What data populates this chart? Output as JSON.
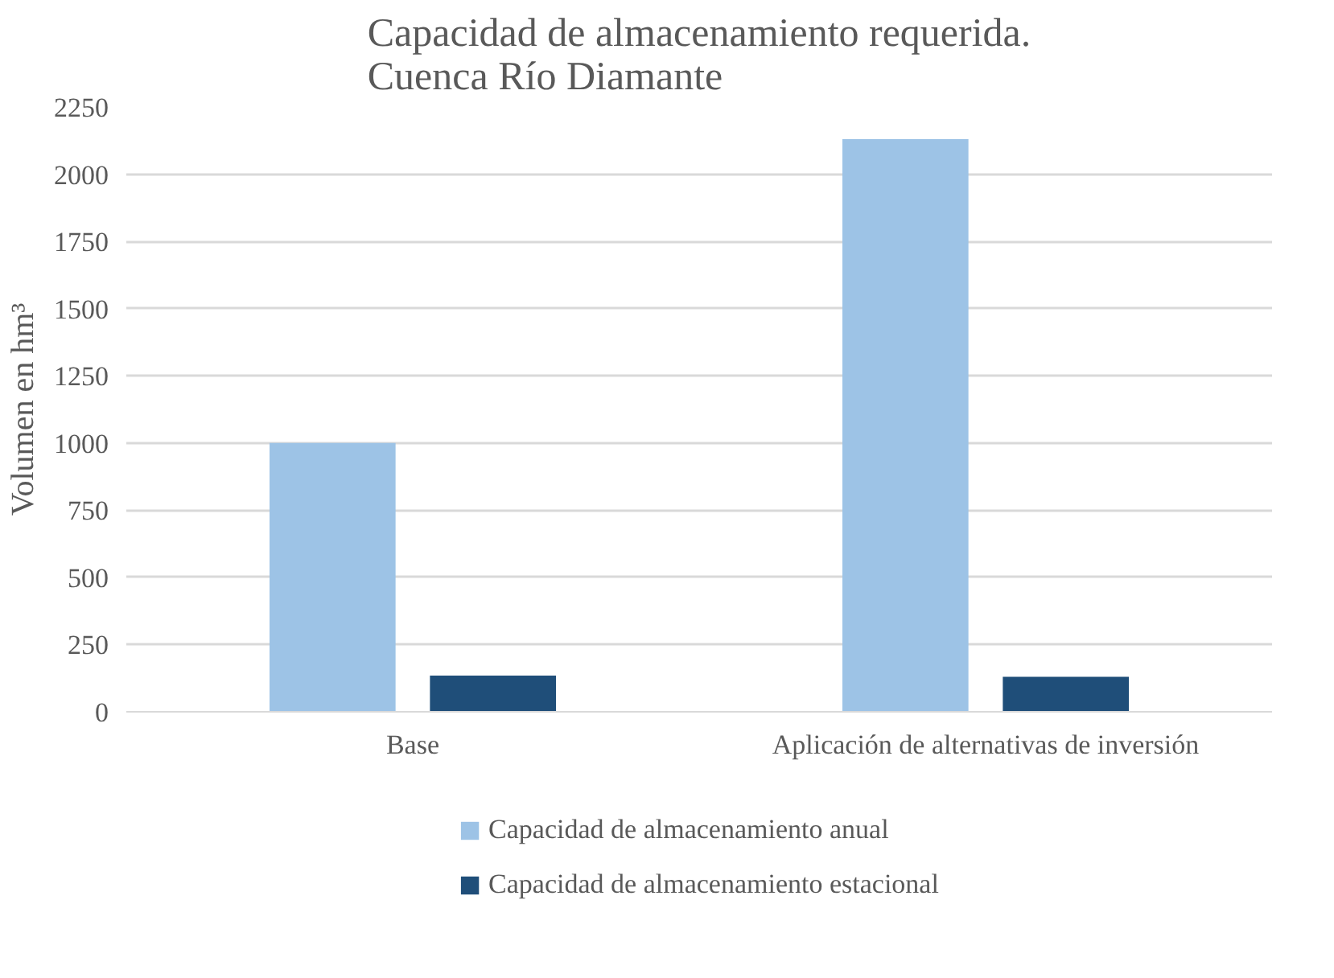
{
  "chart_data": {
    "type": "bar",
    "title": "Capacidad de almacenamiento requerida.\nCuenca Río Diamante",
    "ylabel": "Volumen en hm³",
    "categories": [
      "Base",
      "Aplicación de alternativas de inversión"
    ],
    "series": [
      {
        "name": "Capacidad de almacenamiento anual",
        "color": "#9dc3e6",
        "values": [
          1000,
          2130
        ]
      },
      {
        "name": "Capacidad de almacenamiento estacional",
        "color": "#1f4e79",
        "values": [
          135,
          130
        ]
      }
    ],
    "ylim": [
      0,
      2250
    ],
    "yticks": [
      0,
      250,
      500,
      750,
      1000,
      1250,
      1500,
      1750,
      2000,
      2250
    ],
    "grid": "y",
    "legend": "bottom"
  }
}
